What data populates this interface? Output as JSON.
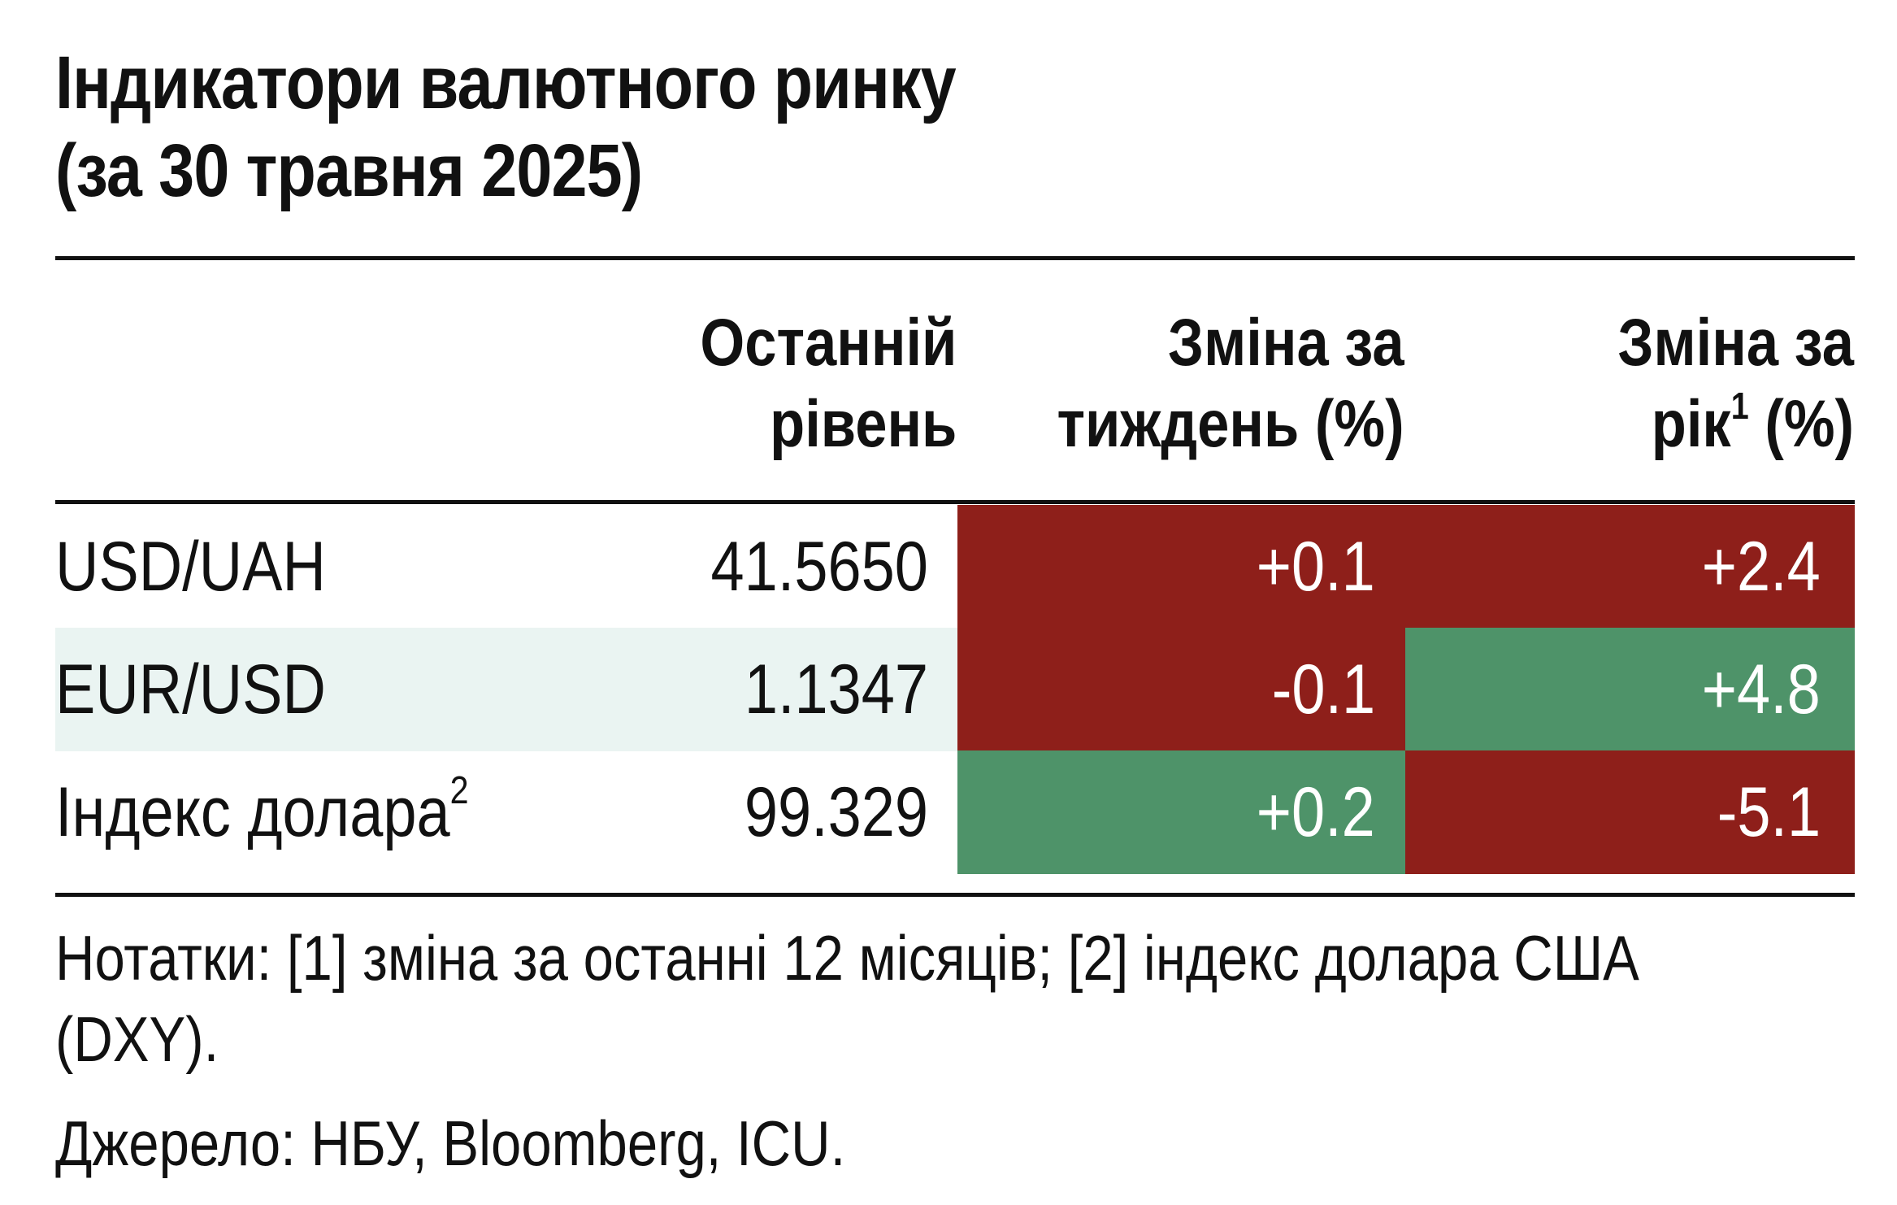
{
  "title_line1": "Індикатори валютного ринку",
  "title_line2": "(за 30 травня 2025)",
  "colors": {
    "negative_fill": "#8e1f1a",
    "positive_fill": "#4e9369",
    "stripe_fill": "#eaf4f2",
    "rule": "#111111"
  },
  "chart_data": {
    "type": "table",
    "columns": [
      {
        "label_line1": "Останній",
        "label_line2": "рівень"
      },
      {
        "label_line1": "Зміна за",
        "label_line2": "тиждень (%)"
      },
      {
        "label_line1": "Зміна за",
        "label_line2_pre": "рік",
        "label_line2_sup": "1",
        "label_line2_post": " (%)"
      }
    ],
    "rows": [
      {
        "name": "USD/UAH",
        "name_sup": "",
        "level": "41.5650",
        "week": "+0.1",
        "week_sign": "negative",
        "year": "+2.4",
        "year_sign": "negative",
        "striped": false
      },
      {
        "name": "EUR/USD",
        "name_sup": "",
        "level": "1.1347",
        "week": "-0.1",
        "week_sign": "negative",
        "year": "+4.8",
        "year_sign": "positive",
        "striped": true
      },
      {
        "name": "Індекс долара",
        "name_sup": "2",
        "level": "99.329",
        "week": "+0.2",
        "week_sign": "positive",
        "year": "-5.1",
        "year_sign": "negative",
        "striped": false
      }
    ]
  },
  "notes": {
    "text": "Нотатки: [1] зміна за останні 12 місяців; [2] індекс долара США (DXY).",
    "source": "Джерело: НБУ, Bloomberg, ICU."
  }
}
